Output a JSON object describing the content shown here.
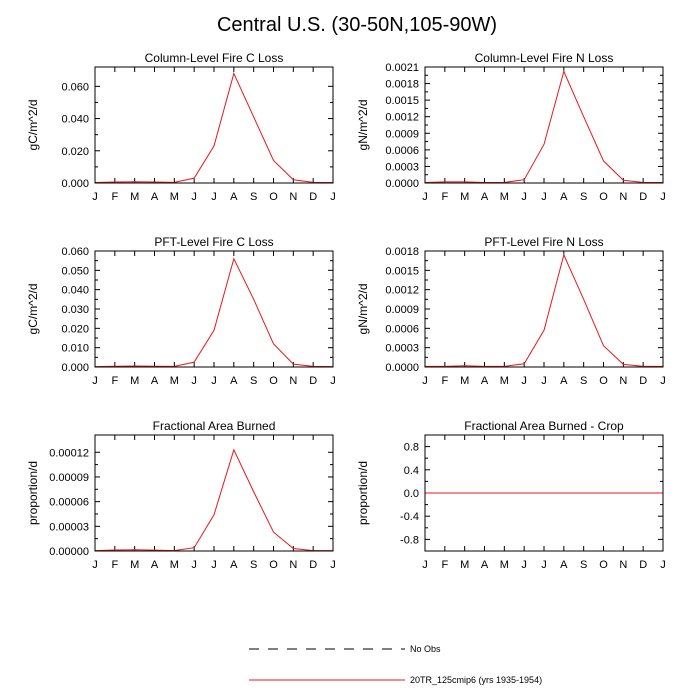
{
  "figure_title": "Central U.S. (30-50N,105-90W)",
  "legend": {
    "items": [
      {
        "label": "No Obs",
        "style": "dashed",
        "color": "#000000"
      },
      {
        "label": "20TR_125cmip6 (yrs 1935-1954)",
        "style": "solid",
        "color": "#e8171c"
      }
    ]
  },
  "chart_data": [
    {
      "type": "line",
      "title": "Column-Level Fire C Loss",
      "ylabel": "gC/m^2/d",
      "x": [
        "J",
        "F",
        "M",
        "A",
        "M",
        "J",
        "J",
        "A",
        "S",
        "O",
        "N",
        "D",
        "J"
      ],
      "ylim": [
        0,
        0.072
      ],
      "yticks": [
        "0.000",
        "0.020",
        "0.040",
        "0.060"
      ],
      "ytick_values": [
        0,
        0.02,
        0.04,
        0.06
      ],
      "series": [
        {
          "color": "#e8171c",
          "values": [
            0.0003,
            0.0006,
            0.0008,
            0.0006,
            0.0004,
            0.003,
            0.023,
            0.068,
            0.041,
            0.014,
            0.002,
            0.0004,
            0.0003
          ]
        }
      ]
    },
    {
      "type": "line",
      "title": "Column-Level Fire N Loss",
      "ylabel": "gN/m^2/d",
      "x": [
        "J",
        "F",
        "M",
        "A",
        "M",
        "J",
        "J",
        "A",
        "S",
        "O",
        "N",
        "D",
        "J"
      ],
      "ylim": [
        0,
        0.0021
      ],
      "yticks": [
        "0.0000",
        "0.0003",
        "0.0006",
        "0.0009",
        "0.0012",
        "0.0015",
        "0.0018",
        "0.0021"
      ],
      "ytick_values": [
        0,
        0.0003,
        0.0006,
        0.0009,
        0.0012,
        0.0015,
        0.0018,
        0.0021
      ],
      "series": [
        {
          "color": "#e8171c",
          "values": [
            1e-05,
            2e-05,
            2e-05,
            1e-05,
            1e-05,
            6e-05,
            0.0007,
            0.00202,
            0.0012,
            0.0004,
            5e-05,
            1e-05,
            1e-05
          ]
        }
      ]
    },
    {
      "type": "line",
      "title": "PFT-Level Fire C Loss",
      "ylabel": "gC/m^2/d",
      "x": [
        "J",
        "F",
        "M",
        "A",
        "M",
        "J",
        "J",
        "A",
        "S",
        "O",
        "N",
        "D",
        "J"
      ],
      "ylim": [
        0,
        0.06
      ],
      "yticks": [
        "0.000",
        "0.010",
        "0.020",
        "0.030",
        "0.040",
        "0.050",
        "0.060"
      ],
      "ytick_values": [
        0,
        0.01,
        0.02,
        0.03,
        0.04,
        0.05,
        0.06
      ],
      "series": [
        {
          "color": "#e8171c",
          "values": [
            0.0002,
            0.0004,
            0.0005,
            0.0004,
            0.0003,
            0.0025,
            0.019,
            0.056,
            0.035,
            0.012,
            0.0015,
            0.0003,
            0.0002
          ]
        }
      ]
    },
    {
      "type": "line",
      "title": "PFT-Level Fire N Loss",
      "ylabel": "gN/m^2/d",
      "x": [
        "J",
        "F",
        "M",
        "A",
        "M",
        "J",
        "J",
        "A",
        "S",
        "O",
        "N",
        "D",
        "J"
      ],
      "ylim": [
        0,
        0.0018
      ],
      "yticks": [
        "0.0000",
        "0.0003",
        "0.0006",
        "0.0009",
        "0.0012",
        "0.0015",
        "0.0018"
      ],
      "ytick_values": [
        0,
        0.0003,
        0.0006,
        0.0009,
        0.0012,
        0.0015,
        0.0018
      ],
      "series": [
        {
          "color": "#e8171c",
          "values": [
            1e-05,
            1e-05,
            2e-05,
            1e-05,
            1e-05,
            5e-05,
            0.00057,
            0.00174,
            0.00105,
            0.00033,
            4e-05,
            1e-05,
            1e-05
          ]
        }
      ]
    },
    {
      "type": "line",
      "title": "Fractional Area Burned",
      "ylabel": "proportion/d",
      "x": [
        "J",
        "F",
        "M",
        "A",
        "M",
        "J",
        "J",
        "A",
        "S",
        "O",
        "N",
        "D",
        "J"
      ],
      "ylim": [
        0,
        0.000141
      ],
      "yticks": [
        "0.00000",
        "0.00003",
        "0.00006",
        "0.00009",
        "0.00012"
      ],
      "ytick_values": [
        0,
        3e-05,
        6e-05,
        9e-05,
        0.00012
      ],
      "series": [
        {
          "color": "#e8171c",
          "values": [
            5e-07,
            1.2e-06,
            1.5e-06,
            1e-06,
            5e-07,
            4e-06,
            4.4e-05,
            0.000123,
            7.2e-05,
            2.3e-05,
            3e-06,
            5e-07,
            5e-07
          ]
        }
      ]
    },
    {
      "type": "line",
      "title": "Fractional Area Burned - Crop",
      "ylabel": "proportion/d",
      "x": [
        "J",
        "F",
        "M",
        "A",
        "M",
        "J",
        "J",
        "A",
        "S",
        "O",
        "N",
        "D",
        "J"
      ],
      "ylim": [
        -1.0,
        1.0
      ],
      "yticks": [
        "-0.8",
        "-0.4",
        "0.0",
        "0.4",
        "0.8"
      ],
      "ytick_values": [
        -0.8,
        -0.4,
        0,
        0.4,
        0.8
      ],
      "series": [
        {
          "color": "#e8171c",
          "values": [
            0,
            0,
            0,
            0,
            0,
            0,
            0,
            0,
            0,
            0,
            0,
            0,
            0
          ]
        }
      ]
    }
  ]
}
